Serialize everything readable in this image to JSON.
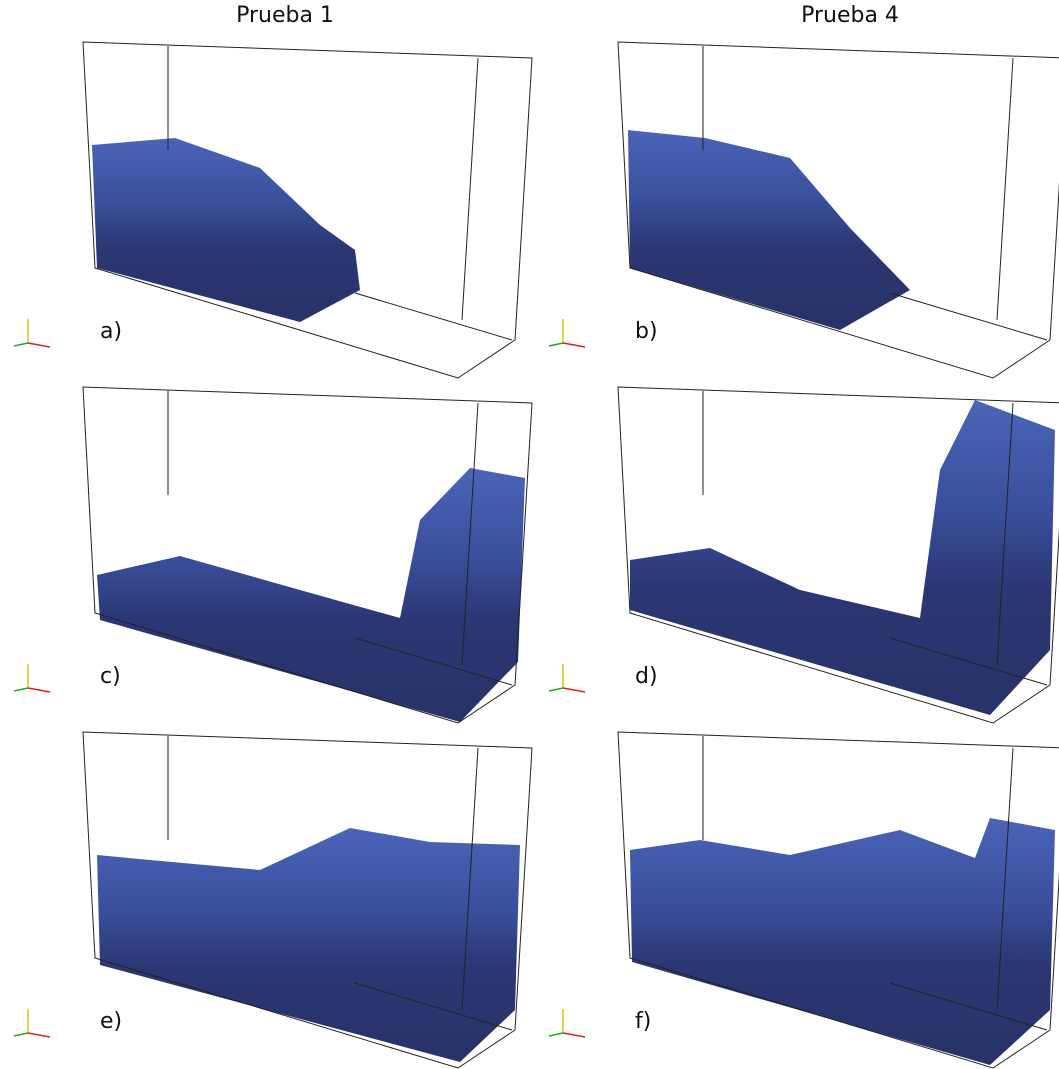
{
  "columns": [
    "Prueba 1",
    "Prueba 4"
  ],
  "panels": [
    {
      "label": "a)"
    },
    {
      "label": "b)"
    },
    {
      "label": "c)"
    },
    {
      "label": "d)"
    },
    {
      "label": "e)"
    },
    {
      "label": "f)"
    }
  ]
}
